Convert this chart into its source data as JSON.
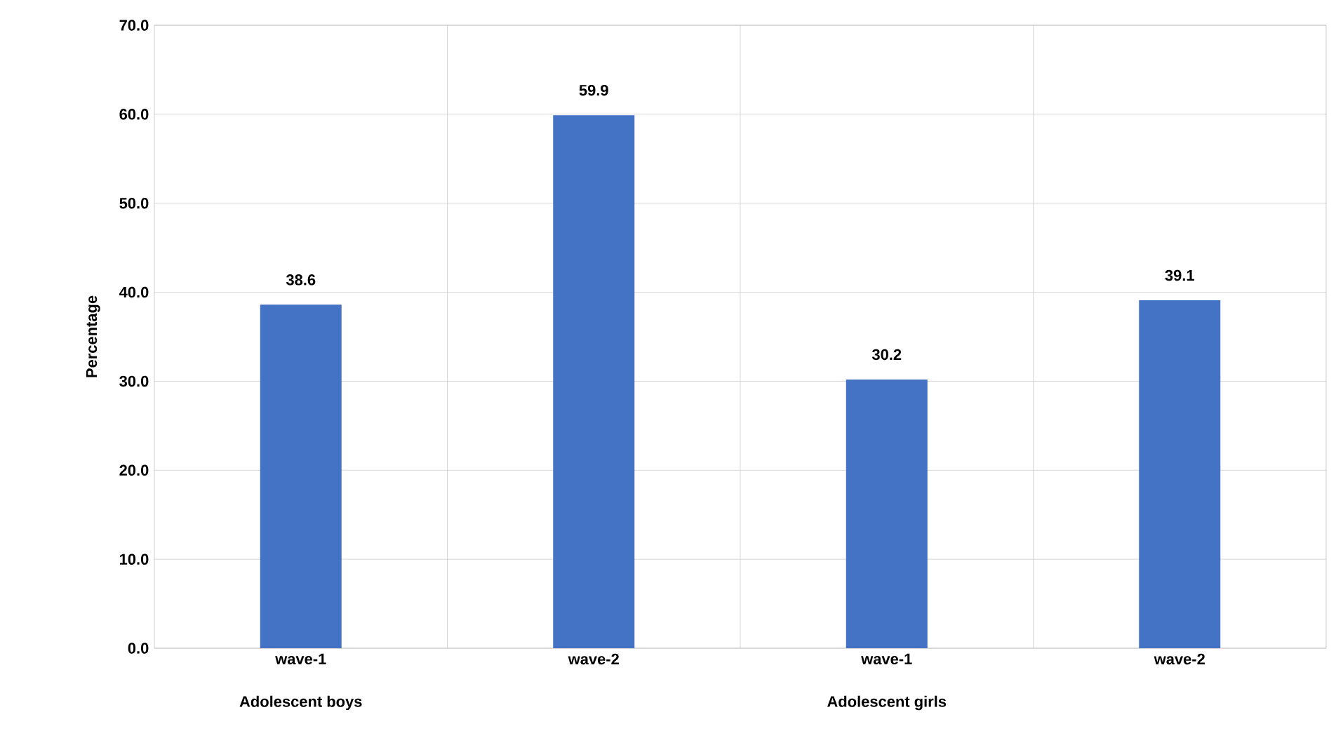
{
  "chart_data": {
    "type": "bar",
    "ylabel": "Percentage",
    "categories": [
      "wave-1",
      "wave-2",
      "wave-1",
      "wave-2"
    ],
    "values": [
      38.6,
      59.9,
      30.2,
      39.1
    ],
    "color": "#4472c4",
    "ylim": [
      0,
      70
    ],
    "yticks": [
      {
        "value": 0,
        "label": "0.0"
      },
      {
        "value": 10,
        "label": "10.0"
      },
      {
        "value": 20,
        "label": "20.0"
      },
      {
        "value": 30,
        "label": "30.0"
      },
      {
        "value": 40,
        "label": "40.0"
      },
      {
        "value": 50,
        "label": "50.0"
      },
      {
        "value": 60,
        "label": "60.0"
      },
      {
        "value": 70,
        "label": "70.0"
      }
    ],
    "grid": true,
    "data_labels": true,
    "annotations": [
      "Adolescent boys",
      "Adolescent girls"
    ]
  }
}
